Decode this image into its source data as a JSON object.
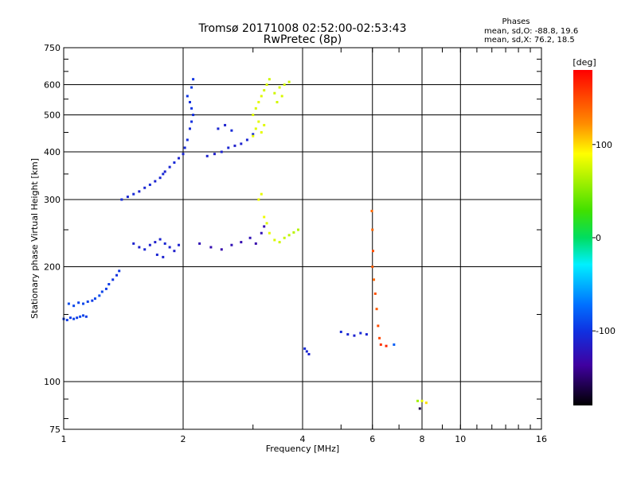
{
  "header": {
    "title_line1": "Tromsø 20171008 02:52:00-02:53:43",
    "title_line2": "RwPretec (8p)"
  },
  "info": {
    "heading": "Phases",
    "line_o": "mean, sd,O: -88.8, 19.6",
    "line_x": "mean, sd,X:  76.2, 18.5"
  },
  "colorbar": {
    "unit_label": "[deg]",
    "ticks": [
      {
        "value": 100,
        "label": "100"
      },
      {
        "value": 0,
        "label": "0"
      },
      {
        "value": -100,
        "label": "-100"
      }
    ],
    "range": [
      -180,
      180
    ]
  },
  "chart_data": {
    "type": "scatter",
    "title": "Tromsø 20171008 02:52:00-02:53:43",
    "subtitle": "RwPretec (8p)",
    "xlabel": "Frequency [MHz]",
    "ylabel": "Stationary phase Virtual Height [km]",
    "xscale": "log",
    "yscale": "log",
    "xlim": [
      1,
      16
    ],
    "ylim": [
      75,
      750
    ],
    "xticks": [
      1,
      2,
      4,
      6,
      8,
      10,
      16
    ],
    "xtick_labels": [
      "1",
      "2",
      "4",
      "6",
      "8",
      "10",
      "16"
    ],
    "yticks": [
      75,
      100,
      200,
      300,
      400,
      500,
      600,
      750
    ],
    "ytick_labels": [
      "75",
      "100",
      "200",
      "300",
      "400",
      "500",
      "600",
      "750"
    ],
    "x_gridlines": [
      2,
      4,
      6,
      8,
      10
    ],
    "y_gridlines": [
      100,
      200,
      300,
      400,
      500,
      600
    ],
    "color_variable": "phase [deg]",
    "series": [
      {
        "points": [
          [
            1.0,
            146,
            -95
          ],
          [
            1.02,
            145,
            -95
          ],
          [
            1.04,
            147,
            -95
          ],
          [
            1.06,
            146,
            -92
          ],
          [
            1.08,
            147,
            -95
          ],
          [
            1.1,
            148,
            -90
          ],
          [
            1.12,
            149,
            -92
          ],
          [
            1.14,
            148,
            -95
          ],
          [
            1.03,
            160,
            -88
          ],
          [
            1.06,
            158,
            -90
          ],
          [
            1.09,
            161,
            -92
          ],
          [
            1.12,
            160,
            -90
          ],
          [
            1.15,
            162,
            -92
          ],
          [
            1.18,
            163,
            -95
          ],
          [
            1.2,
            165,
            -90
          ],
          [
            1.23,
            168,
            -88
          ],
          [
            1.25,
            172,
            -92
          ],
          [
            1.28,
            175,
            -95
          ],
          [
            1.3,
            180,
            -95
          ],
          [
            1.33,
            185,
            -98
          ],
          [
            1.36,
            190,
            -100
          ],
          [
            1.38,
            195,
            -98
          ]
        ]
      },
      {
        "points": [
          [
            1.4,
            300,
            -105
          ],
          [
            1.45,
            305,
            -108
          ],
          [
            1.5,
            310,
            -105
          ],
          [
            1.55,
            315,
            -110
          ],
          [
            1.6,
            322,
            -108
          ],
          [
            1.65,
            328,
            -105
          ],
          [
            1.7,
            335,
            -110
          ],
          [
            1.75,
            342,
            -108
          ],
          [
            1.78,
            350,
            -105
          ],
          [
            1.8,
            355,
            -110
          ],
          [
            1.85,
            365,
            -108
          ],
          [
            1.9,
            375,
            -105
          ],
          [
            1.95,
            385,
            -110
          ],
          [
            2.0,
            395,
            -108
          ],
          [
            2.02,
            410,
            -105
          ],
          [
            2.05,
            430,
            -102
          ],
          [
            2.08,
            460,
            -105
          ],
          [
            2.1,
            480,
            -100
          ],
          [
            2.12,
            500,
            -102
          ],
          [
            2.1,
            520,
            -98
          ],
          [
            2.08,
            540,
            -100
          ],
          [
            2.05,
            560,
            -98
          ],
          [
            2.1,
            590,
            -95
          ],
          [
            2.12,
            620,
            -98
          ]
        ]
      },
      {
        "points": [
          [
            2.3,
            390,
            -110
          ],
          [
            2.4,
            395,
            -112
          ],
          [
            2.5,
            400,
            -110
          ],
          [
            2.6,
            410,
            -108
          ],
          [
            2.7,
            415,
            -112
          ],
          [
            2.8,
            420,
            -110
          ],
          [
            2.9,
            430,
            -108
          ],
          [
            3.0,
            445,
            -105
          ],
          [
            2.45,
            460,
            -108
          ],
          [
            2.55,
            470,
            -110
          ],
          [
            2.65,
            455,
            -105
          ]
        ]
      },
      {
        "points": [
          [
            3.0,
            500,
            80
          ],
          [
            3.05,
            520,
            78
          ],
          [
            3.1,
            540,
            82
          ],
          [
            3.15,
            560,
            80
          ],
          [
            3.2,
            580,
            76
          ],
          [
            3.25,
            600,
            78
          ],
          [
            3.3,
            620,
            75
          ],
          [
            3.1,
            480,
            82
          ],
          [
            3.05,
            460,
            80
          ],
          [
            3.0,
            440,
            84
          ],
          [
            3.15,
            450,
            82
          ],
          [
            3.2,
            470,
            80
          ],
          [
            3.4,
            570,
            75
          ],
          [
            3.5,
            590,
            78
          ],
          [
            3.6,
            600,
            76
          ],
          [
            3.7,
            610,
            74
          ],
          [
            3.55,
            560,
            78
          ],
          [
            3.45,
            540,
            76
          ]
        ]
      },
      {
        "points": [
          [
            1.5,
            230,
            -110
          ],
          [
            1.55,
            225,
            -112
          ],
          [
            1.6,
            222,
            -108
          ],
          [
            1.65,
            228,
            -110
          ],
          [
            1.7,
            232,
            -112
          ],
          [
            1.75,
            236,
            -110
          ],
          [
            1.8,
            230,
            -108
          ],
          [
            1.85,
            225,
            -110
          ],
          [
            1.9,
            220,
            -112
          ],
          [
            1.95,
            228,
            -110
          ],
          [
            1.72,
            215,
            -108
          ],
          [
            1.78,
            212,
            -110
          ]
        ]
      },
      {
        "points": [
          [
            2.2,
            230,
            -125
          ],
          [
            2.35,
            225,
            -128
          ],
          [
            2.5,
            222,
            -130
          ],
          [
            2.65,
            228,
            -125
          ],
          [
            2.8,
            232,
            -128
          ],
          [
            2.95,
            238,
            -125
          ],
          [
            3.05,
            230,
            -130
          ],
          [
            3.15,
            245,
            -125
          ],
          [
            3.2,
            255,
            -128
          ]
        ]
      },
      {
        "points": [
          [
            3.1,
            300,
            85
          ],
          [
            3.15,
            310,
            82
          ],
          [
            3.2,
            270,
            85
          ],
          [
            3.25,
            260,
            80
          ],
          [
            3.3,
            245,
            82
          ],
          [
            3.4,
            235,
            78
          ],
          [
            3.5,
            232,
            75
          ],
          [
            3.6,
            238,
            72
          ],
          [
            3.7,
            242,
            70
          ],
          [
            3.8,
            246,
            68
          ],
          [
            3.9,
            250,
            66
          ]
        ]
      },
      {
        "points": [
          [
            4.05,
            122,
            -105
          ],
          [
            4.1,
            120,
            -108
          ],
          [
            4.15,
            118,
            -110
          ],
          [
            5.0,
            135,
            -105
          ],
          [
            5.2,
            133,
            -108
          ],
          [
            5.4,
            132,
            -110
          ],
          [
            5.6,
            134,
            -105
          ],
          [
            5.8,
            133,
            -108
          ],
          [
            6.3,
            125,
            160
          ],
          [
            6.5,
            124,
            165
          ],
          [
            6.8,
            125,
            -80
          ]
        ]
      },
      {
        "points": [
          [
            5.98,
            280,
            140
          ],
          [
            6.0,
            250,
            140
          ],
          [
            6.02,
            220,
            150
          ],
          [
            6.0,
            200,
            145
          ],
          [
            6.05,
            185,
            140
          ],
          [
            6.1,
            170,
            148
          ],
          [
            6.15,
            155,
            145
          ],
          [
            6.2,
            140,
            150
          ],
          [
            6.25,
            130,
            152
          ]
        ]
      },
      {
        "points": [
          [
            7.8,
            89,
            60
          ],
          [
            8.0,
            89,
            80
          ],
          [
            8.2,
            88,
            100
          ],
          [
            7.9,
            85,
            -160
          ]
        ]
      }
    ]
  }
}
